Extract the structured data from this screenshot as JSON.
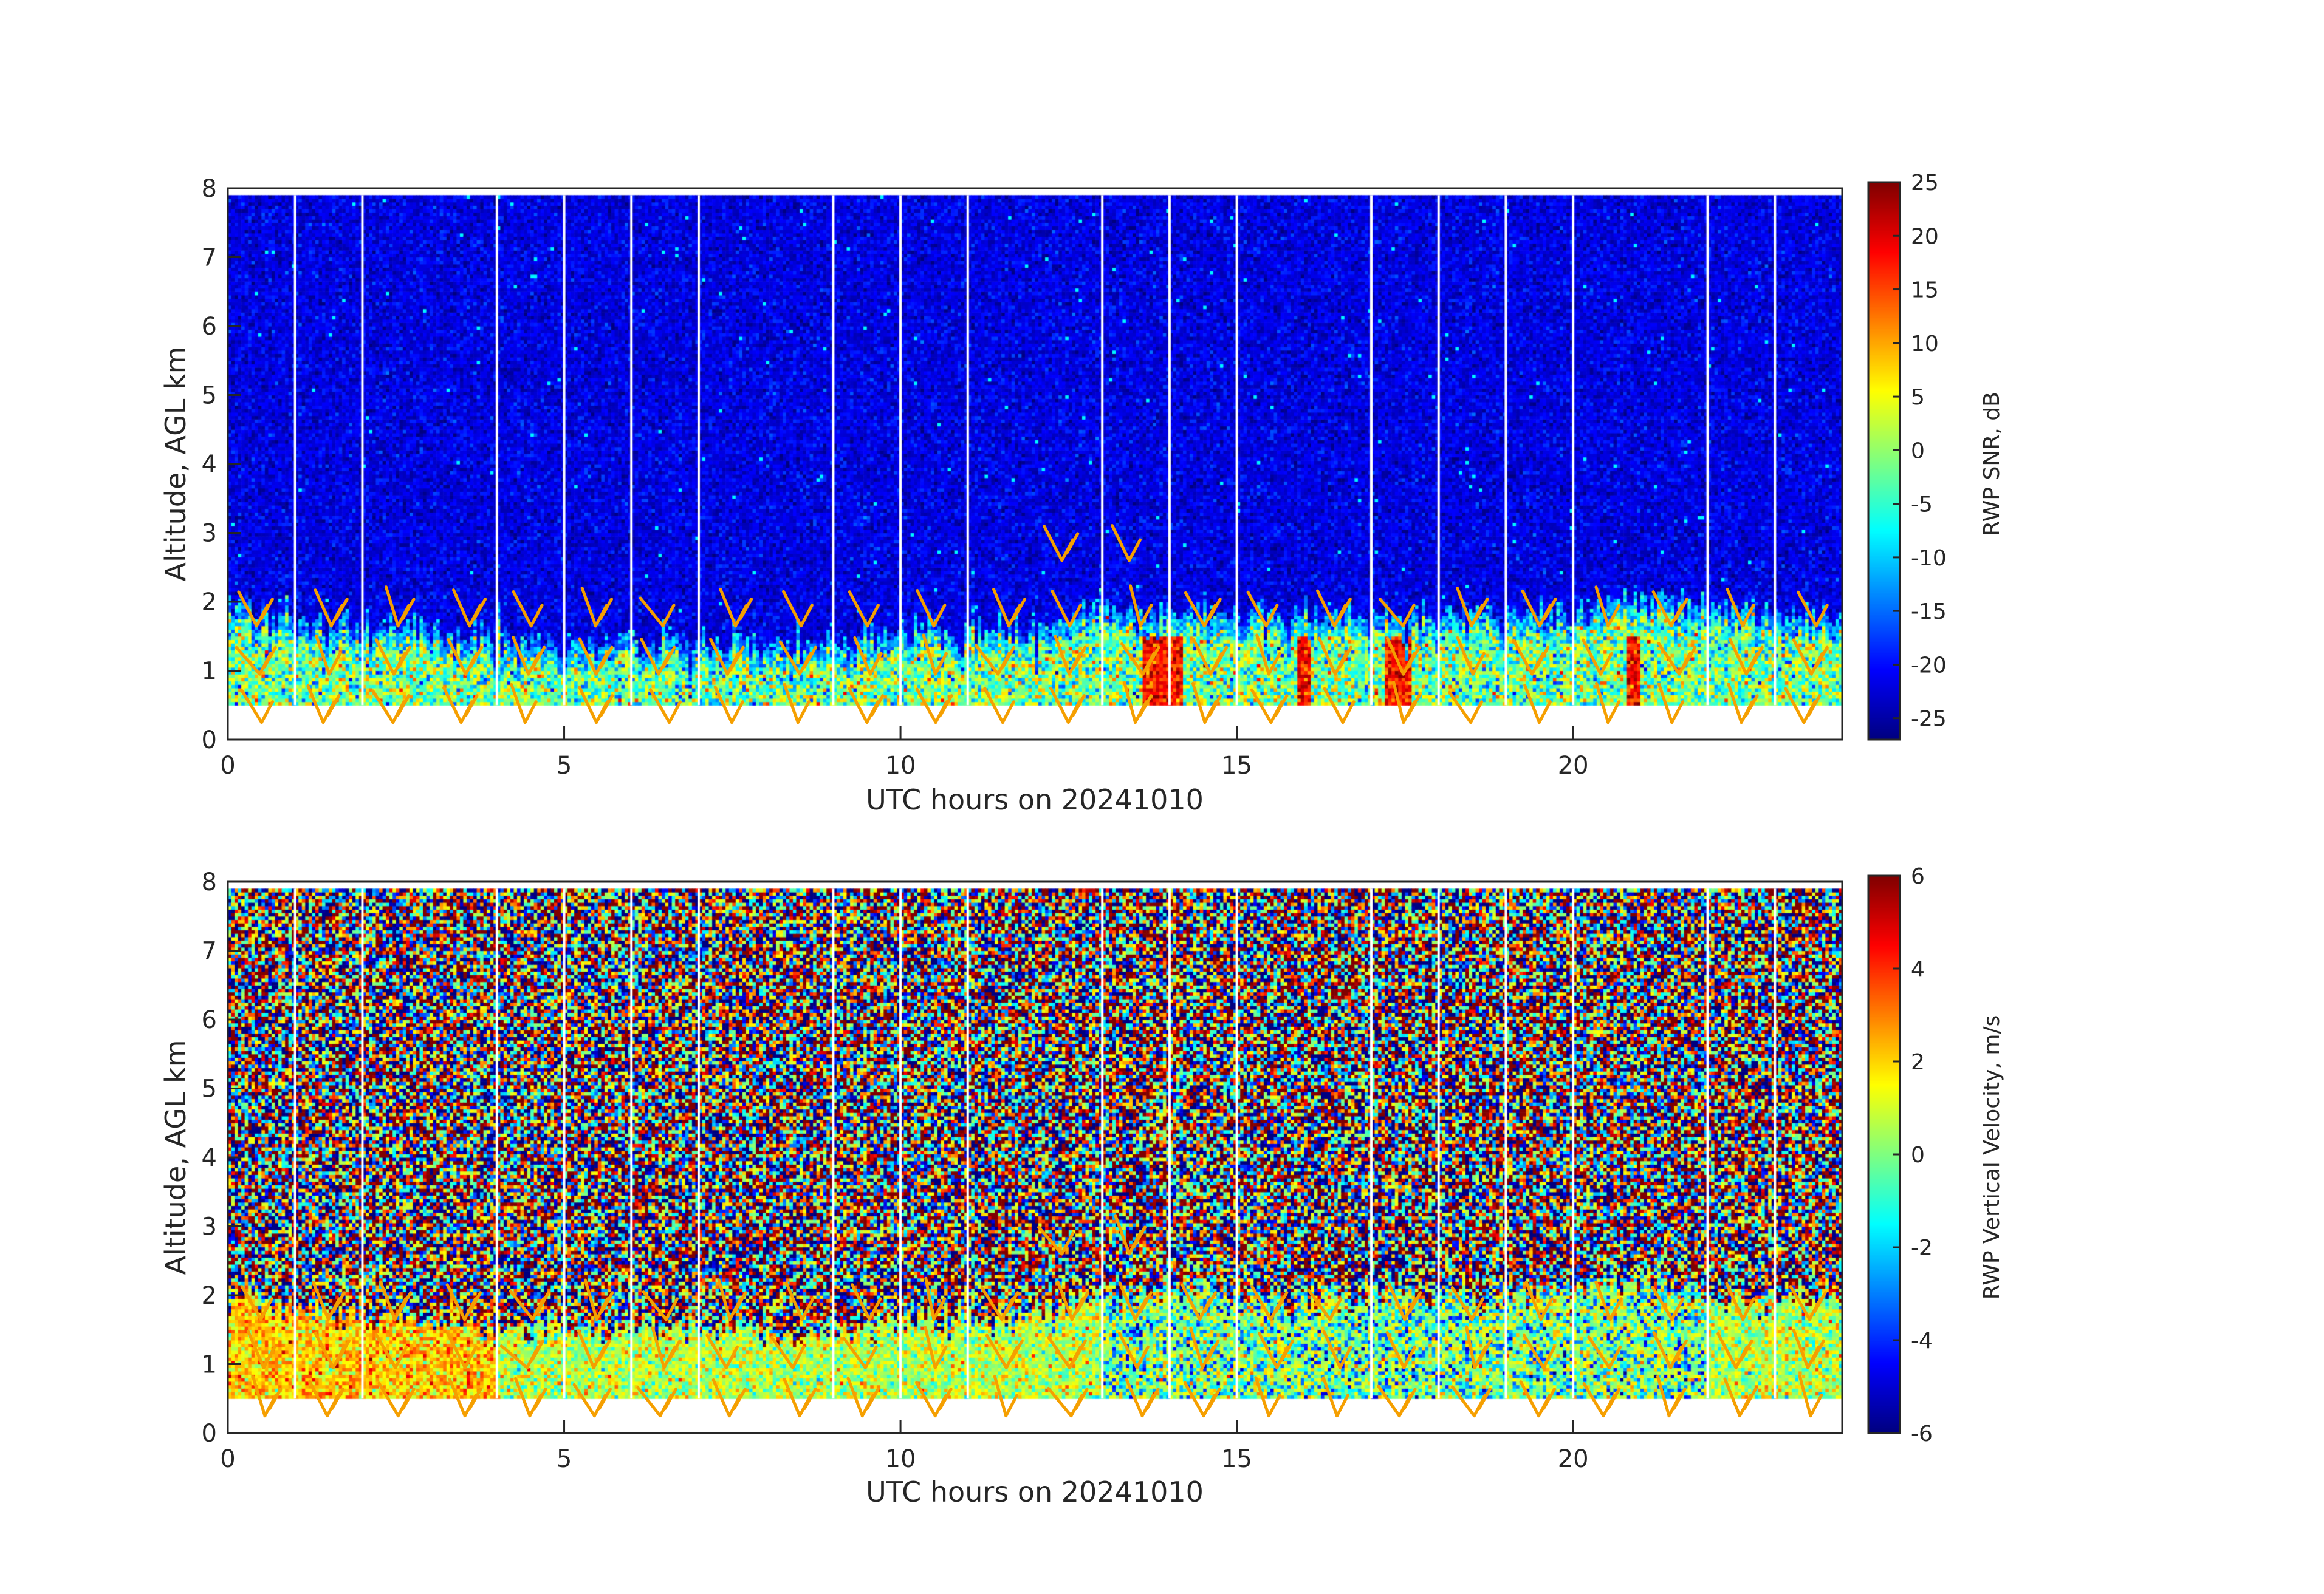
{
  "chart_data": [
    {
      "type": "heatmap",
      "xlabel": "UTC hours on 20241010",
      "ylabel": "Altitude, AGL km",
      "xlim": [
        0,
        24
      ],
      "ylim": [
        0,
        8
      ],
      "x_ticks": [
        "0",
        "5",
        "10",
        "15",
        "20"
      ],
      "y_ticks": [
        "0",
        "1",
        "2",
        "3",
        "4",
        "5",
        "6",
        "7",
        "8"
      ],
      "colorbar": {
        "label": "RWP SNR, dB",
        "range": [
          -27,
          25
        ],
        "ticks": [
          "-25",
          "-20",
          "-15",
          "-10",
          "-5",
          "0",
          "5",
          "10",
          "15",
          "20",
          "25"
        ],
        "colormap": "jet"
      },
      "data_altitude_range": [
        0.5,
        7.9
      ],
      "gap_hours": [
        1,
        2,
        4,
        5,
        6,
        7,
        9,
        10,
        11,
        13,
        14,
        15,
        17,
        18,
        19,
        20,
        22,
        23
      ],
      "boundary_layer_top_km": [
        [
          0,
          2.0
        ],
        [
          0.5,
          1.8
        ],
        [
          1,
          1.8
        ],
        [
          2,
          1.6
        ],
        [
          3,
          1.6
        ],
        [
          4,
          1.4
        ],
        [
          5,
          1.4
        ],
        [
          6,
          1.4
        ],
        [
          7,
          1.4
        ],
        [
          8,
          1.4
        ],
        [
          9,
          1.4
        ],
        [
          10,
          1.6
        ],
        [
          11,
          1.6
        ],
        [
          12,
          1.6
        ],
        [
          13,
          1.9
        ],
        [
          14,
          1.8
        ],
        [
          15,
          1.8
        ],
        [
          16,
          1.8
        ],
        [
          17,
          1.8
        ],
        [
          18,
          1.8
        ],
        [
          19,
          1.8
        ],
        [
          20,
          1.9
        ],
        [
          21,
          2.0
        ],
        [
          22,
          1.9
        ],
        [
          23,
          1.8
        ],
        [
          24,
          1.8
        ]
      ],
      "overlay": "wind barbs"
    },
    {
      "type": "heatmap",
      "xlabel": "UTC hours on 20241010",
      "ylabel": "Altitude, AGL km",
      "xlim": [
        0,
        24
      ],
      "ylim": [
        0,
        8
      ],
      "x_ticks": [
        "0",
        "5",
        "10",
        "15",
        "20"
      ],
      "y_ticks": [
        "0",
        "1",
        "2",
        "3",
        "4",
        "5",
        "6",
        "7",
        "8"
      ],
      "colorbar": {
        "label": "RWP Vertical Velocity, m/s",
        "range": [
          -6,
          6
        ],
        "ticks": [
          "-6",
          "-4",
          "-2",
          "0",
          "2",
          "4",
          "6"
        ],
        "colormap": "jet"
      },
      "data_altitude_range": [
        0.5,
        7.9
      ],
      "gap_hours": [
        1,
        2,
        4,
        5,
        6,
        7,
        9,
        10,
        11,
        13,
        14,
        15,
        17,
        18,
        19,
        20,
        22,
        23
      ],
      "boundary_layer_top_km": [
        [
          0,
          2.0
        ],
        [
          1,
          1.8
        ],
        [
          2,
          1.7
        ],
        [
          3,
          1.6
        ],
        [
          4,
          1.5
        ],
        [
          5,
          1.5
        ],
        [
          6,
          1.5
        ],
        [
          7,
          1.5
        ],
        [
          8,
          1.5
        ],
        [
          9,
          1.5
        ],
        [
          10,
          1.6
        ],
        [
          11,
          1.6
        ],
        [
          12,
          1.7
        ],
        [
          13,
          2.1
        ],
        [
          14,
          2.0
        ],
        [
          15,
          2.0
        ],
        [
          16,
          2.0
        ],
        [
          17,
          2.0
        ],
        [
          18,
          2.0
        ],
        [
          19,
          2.0
        ],
        [
          20,
          2.1
        ],
        [
          21,
          2.2
        ],
        [
          22,
          2.0
        ],
        [
          23,
          1.9
        ],
        [
          24,
          1.9
        ]
      ],
      "overlay": "wind barbs"
    }
  ]
}
